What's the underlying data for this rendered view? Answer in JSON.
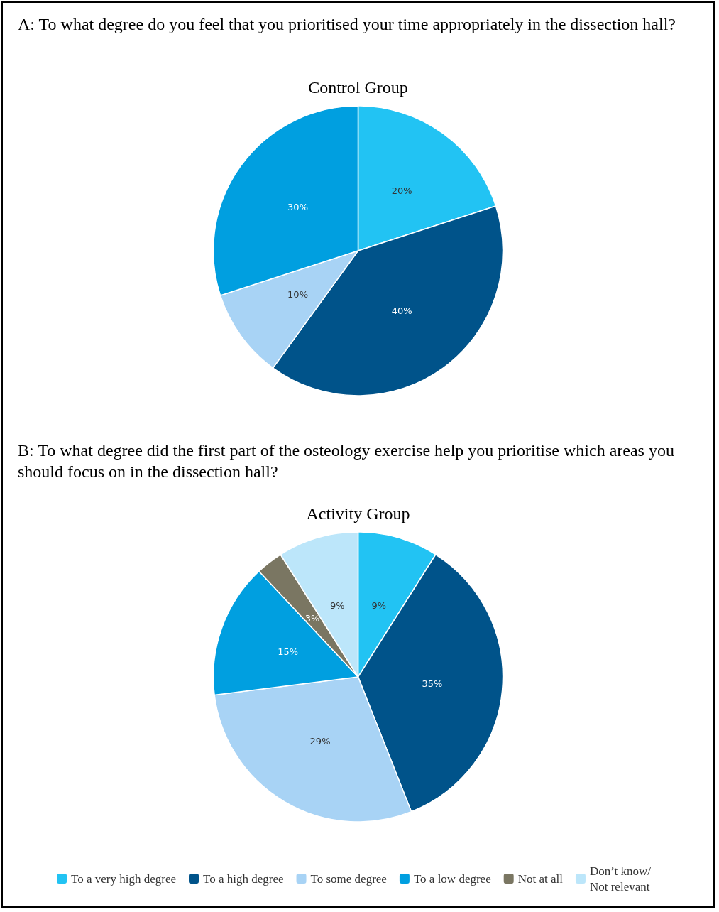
{
  "chart_data": {
    "type": "pie",
    "annotations": [
      "A: To what degree do you feel that you prioritised your time appropriately in the dissection hall?",
      "B: To what degree did the first part of the osteology exercise help you prioritise which areas you should focus on in the dissection hall?"
    ],
    "categories": [
      "To a very high degree",
      "To a high degree",
      "To some degree",
      "To a low degree",
      "Not at all",
      "Don’t know/ Not relevant"
    ],
    "colors": [
      "#22c3f3",
      "#00538a",
      "#a8d3f5",
      "#009fe0",
      "#7a7662",
      "#bce6fa"
    ],
    "series": [
      {
        "name": "Control Group",
        "values": [
          20,
          40,
          10,
          30,
          null,
          null
        ],
        "value_labels": [
          "20%",
          "40%",
          "10%",
          "30%",
          null,
          null
        ]
      },
      {
        "name": "Activity Group",
        "values": [
          9,
          35,
          29,
          15,
          3,
          9
        ],
        "value_labels": [
          "9%",
          "35%",
          "29%",
          "15%",
          "3%",
          "9%"
        ]
      }
    ],
    "legend": "bottom"
  }
}
